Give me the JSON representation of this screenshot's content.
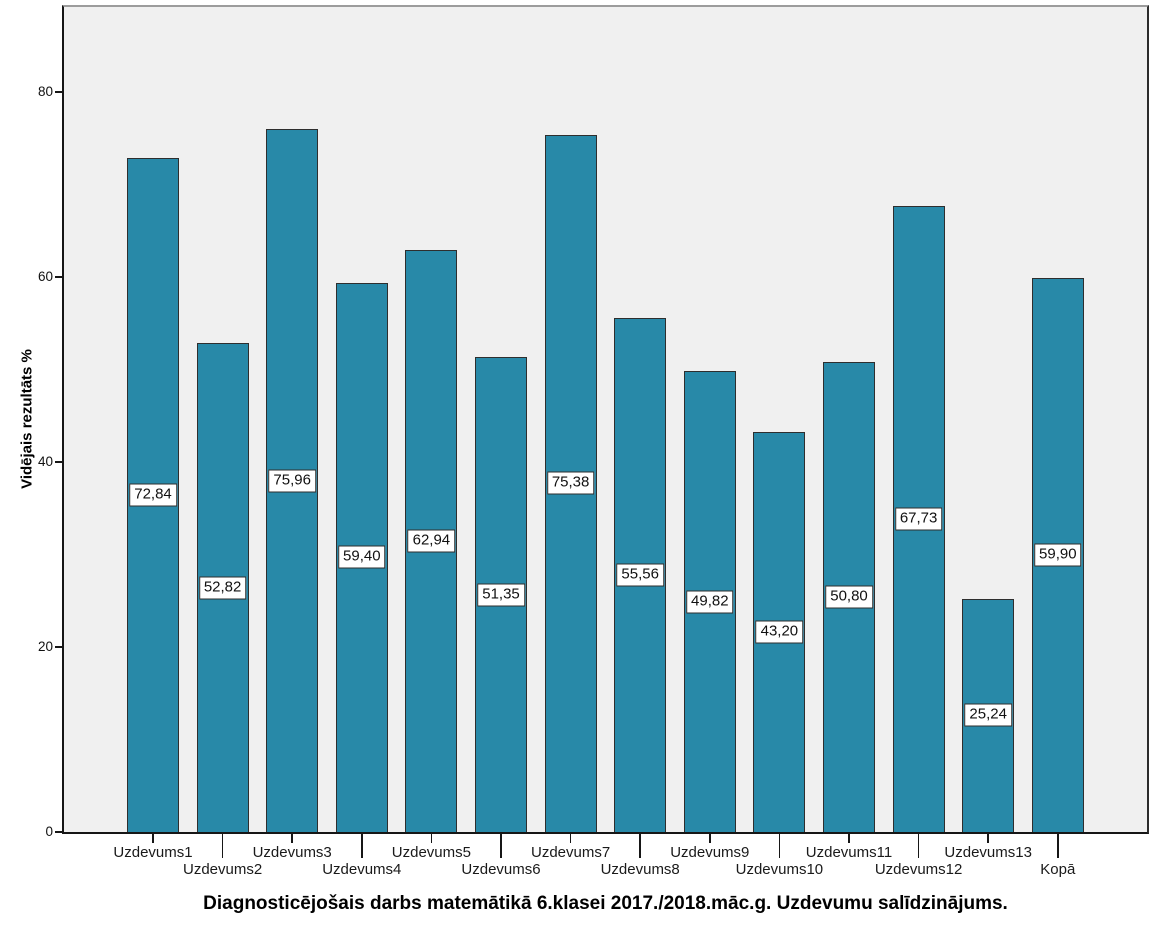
{
  "chart_data": {
    "type": "bar",
    "title": "Diagnosticējošais darbs matemātikā 6.klasei 2017./2018.māc.g. Uzdevumu salīdzinājums.",
    "xlabel": "",
    "ylabel": "Vidējais rezultāts %",
    "categories": [
      "Uzdevums1",
      "Uzdevums2",
      "Uzdevums3",
      "Uzdevums4",
      "Uzdevums5",
      "Uzdevums6",
      "Uzdevums7",
      "Uzdevums8",
      "Uzdevums9",
      "Uzdevums10",
      "Uzdevums11",
      "Uzdevums12",
      "Uzdevums13",
      "Kopā"
    ],
    "values": [
      72.84,
      52.82,
      75.96,
      59.4,
      62.94,
      51.35,
      75.38,
      55.56,
      49.82,
      43.2,
      50.8,
      67.73,
      25.24,
      59.9
    ],
    "value_labels": [
      "72,84",
      "52,82",
      "75,96",
      "59,40",
      "62,94",
      "51,35",
      "75,38",
      "55,56",
      "49,82",
      "43,20",
      "50,80",
      "67,73",
      "25,24",
      "59,90"
    ],
    "y_ticks": [
      0,
      20,
      40,
      60,
      80
    ],
    "y_tick_labels": [
      "0",
      "20",
      "40",
      "60",
      "80"
    ],
    "ylim": [
      0,
      89.2
    ],
    "grid": false,
    "legend": false,
    "bar_color": "#2889A8",
    "bar_border_color": "#2e2e2e",
    "plot_bg_color": "#F0F0F0"
  }
}
